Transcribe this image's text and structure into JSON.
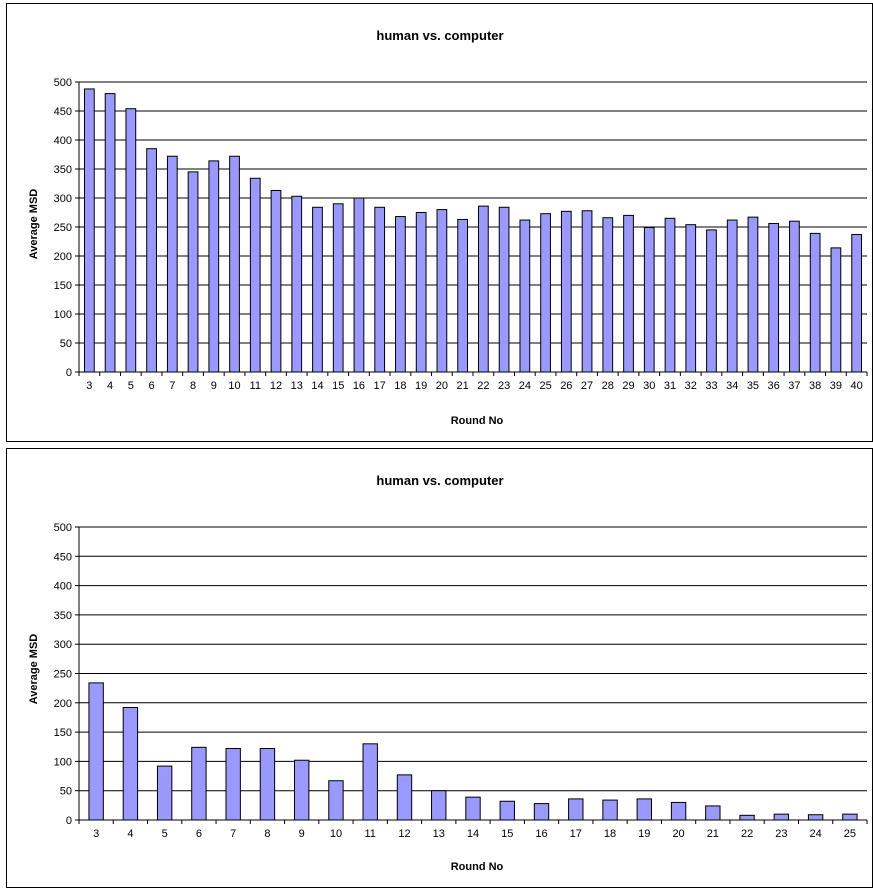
{
  "chart_data": [
    {
      "type": "bar",
      "title": "human vs. computer",
      "xlabel": "Round No",
      "ylabel": "Average MSD",
      "ylim": [
        0,
        500
      ],
      "yticks": [
        0,
        50,
        100,
        150,
        200,
        250,
        300,
        350,
        400,
        450,
        500
      ],
      "grid": true,
      "bar_color": "#9999ff",
      "categories": [
        "3",
        "4",
        "5",
        "6",
        "7",
        "8",
        "9",
        "10",
        "11",
        "12",
        "13",
        "14",
        "15",
        "16",
        "17",
        "18",
        "19",
        "20",
        "21",
        "22",
        "23",
        "24",
        "25",
        "26",
        "27",
        "28",
        "29",
        "30",
        "31",
        "32",
        "33",
        "34",
        "35",
        "36",
        "37",
        "38",
        "39",
        "40"
      ],
      "values": [
        488,
        480,
        454,
        385,
        372,
        345,
        364,
        372,
        334,
        313,
        303,
        284,
        290,
        300,
        284,
        268,
        275,
        280,
        263,
        286,
        284,
        262,
        273,
        277,
        278,
        266,
        270,
        249,
        265,
        254,
        245,
        262,
        267,
        256,
        260,
        239,
        214,
        237
      ]
    },
    {
      "type": "bar",
      "title": "human vs. computer",
      "xlabel": "Round No",
      "ylabel": "Average MSD",
      "ylim": [
        0,
        500
      ],
      "yticks": [
        0,
        50,
        100,
        150,
        200,
        250,
        300,
        350,
        400,
        450,
        500
      ],
      "grid": true,
      "bar_color": "#9999ff",
      "categories": [
        "3",
        "4",
        "5",
        "6",
        "7",
        "8",
        "9",
        "10",
        "11",
        "12",
        "13",
        "14",
        "15",
        "16",
        "17",
        "18",
        "19",
        "20",
        "21",
        "22",
        "23",
        "24",
        "25"
      ],
      "values": [
        234,
        192,
        92,
        124,
        122,
        122,
        102,
        67,
        130,
        77,
        50,
        39,
        32,
        28,
        36,
        34,
        36,
        30,
        24,
        8,
        10,
        9,
        10
      ]
    }
  ]
}
